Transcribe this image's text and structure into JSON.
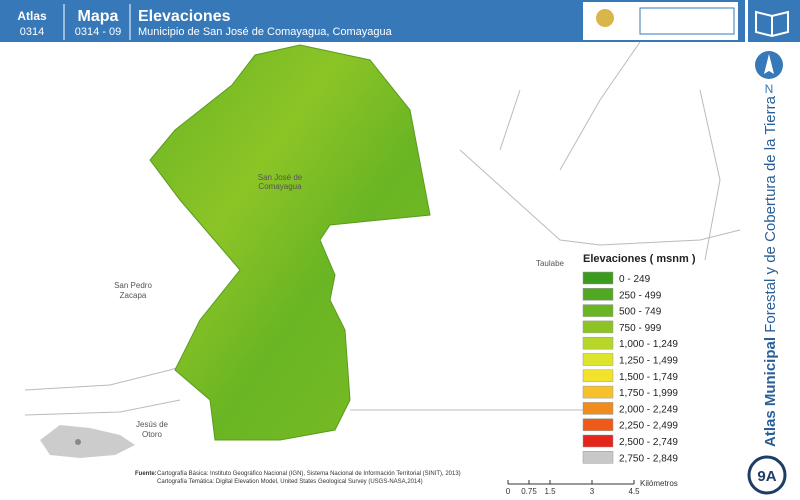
{
  "header": {
    "atlas_label": "Atlas",
    "atlas_code": "0314",
    "map_label": "Mapa",
    "map_code": "0314 - 09",
    "title": "Elevaciones",
    "subtitle": "Municipio de San José de Comayagua, Comayagua"
  },
  "places": [
    {
      "label": "San José de",
      "label2": "Comayagua"
    },
    {
      "label": "Taulabe"
    },
    {
      "label": "San Pedro",
      "label2": "Zacapa"
    },
    {
      "label": "Jesús de",
      "label2": "Otoro"
    }
  ],
  "legend": {
    "title": "Elevaciones ( msnm )",
    "items": [
      {
        "label": "0 - 249",
        "color": "#3c9b1f"
      },
      {
        "label": "250 - 499",
        "color": "#52a822"
      },
      {
        "label": "500 - 749",
        "color": "#6ab524"
      },
      {
        "label": "750 - 999",
        "color": "#8cc426"
      },
      {
        "label": "1,000 - 1,249",
        "color": "#b6d72a"
      },
      {
        "label": "1,250 - 1,499",
        "color": "#dce42d"
      },
      {
        "label": "1,500 - 1,749",
        "color": "#f3e22c"
      },
      {
        "label": "1,750 - 1,999",
        "color": "#f6c12a"
      },
      {
        "label": "2,000 - 2,249",
        "color": "#f08b1e"
      },
      {
        "label": "2,250 - 2,499",
        "color": "#ee5a1a"
      },
      {
        "label": "2,500 - 2,749",
        "color": "#e3261b"
      },
      {
        "label": "2,750 - 2,849",
        "color": "#c8c8c8"
      }
    ]
  },
  "scale": {
    "ticks": [
      0,
      0.75,
      1.5,
      3,
      4.5
    ],
    "unit": "Kilómetros"
  },
  "source": {
    "label": "Fuente:",
    "line1": "Cartografía Básica: Instituto Geográfico Nacional (IGN), Sistema Nacional de Información Territorial (SINIT), 2013)",
    "line2": "Cartografía Temática: Digital Elevation Model, United States Geological Survey (USGS-NASA,2014)"
  },
  "sidebar": {
    "north": "N",
    "title_bold": "Atlas Municipal",
    "title_rest": " Forestal y de Cobertura de la Tierra",
    "page": "9A"
  }
}
